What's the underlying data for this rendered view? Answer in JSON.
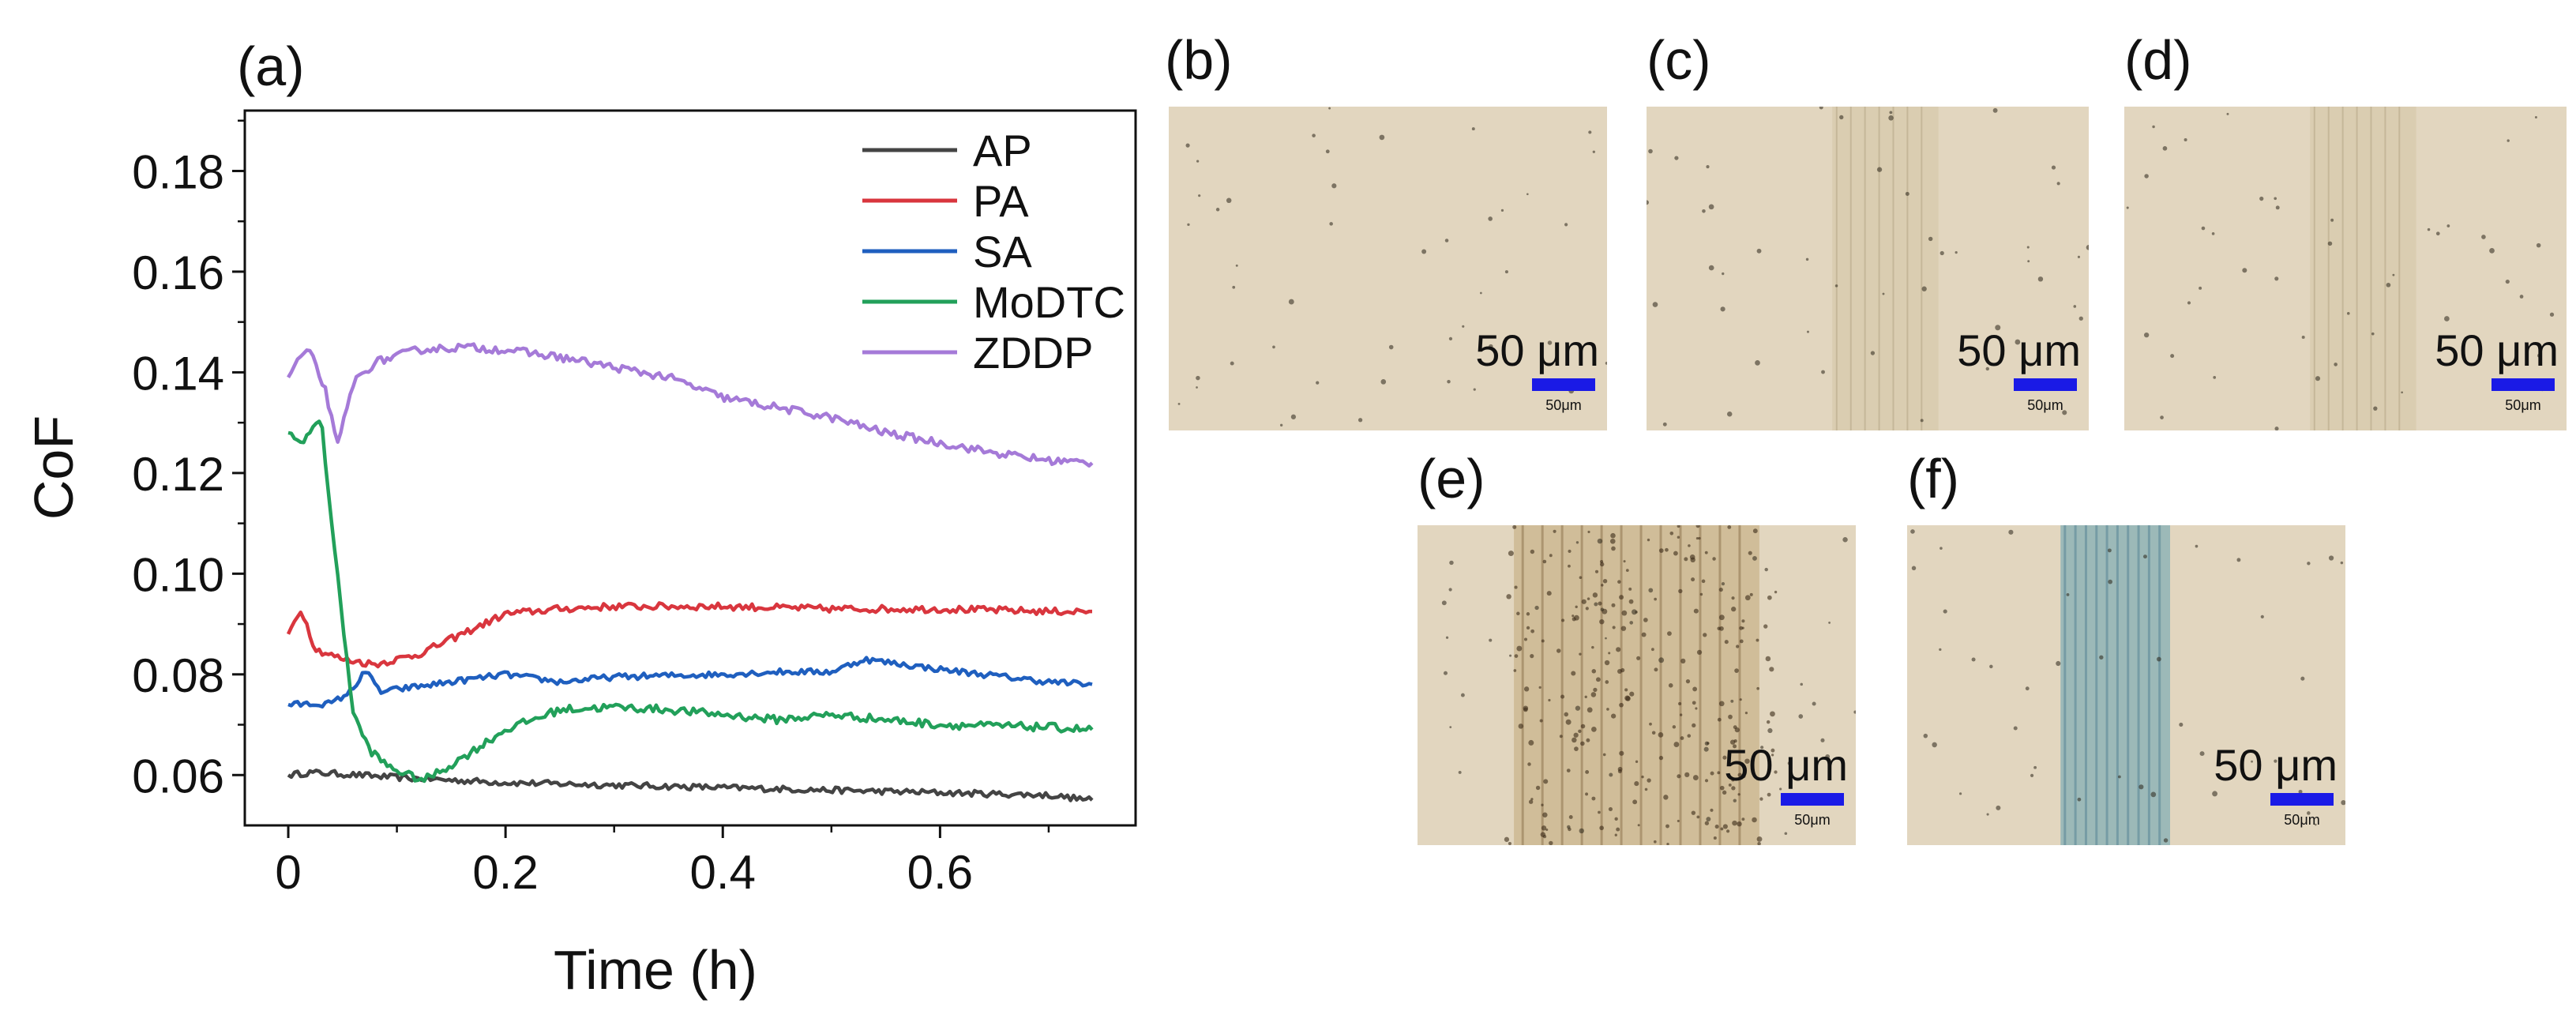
{
  "chart_data": {
    "type": "line",
    "panel_label": "(a)",
    "xlabel": "Time (h)",
    "ylabel": "CoF",
    "xlim": [
      -0.04,
      0.78
    ],
    "ylim": [
      0.05,
      0.192
    ],
    "xticks": [
      0,
      0.2,
      0.4,
      0.6
    ],
    "xtick_labels": [
      "0",
      "0.2",
      "0.4",
      "0.6"
    ],
    "yticks": [
      0.06,
      0.08,
      0.1,
      0.12,
      0.14,
      0.16,
      0.18
    ],
    "ytick_labels": [
      "0.06",
      "0.08",
      "0.10",
      "0.12",
      "0.14",
      "0.16",
      "0.18"
    ],
    "legend_position": "top-right",
    "series": [
      {
        "name": "AP",
        "color": "#444444",
        "x": [
          0,
          0.02,
          0.05,
          0.1,
          0.15,
          0.2,
          0.3,
          0.4,
          0.5,
          0.6,
          0.7,
          0.74
        ],
        "y": [
          0.06,
          0.0605,
          0.0602,
          0.0595,
          0.059,
          0.0585,
          0.058,
          0.0575,
          0.057,
          0.0565,
          0.056,
          0.055
        ],
        "noise": 0.0006
      },
      {
        "name": "PA",
        "color": "#d9363e",
        "x": [
          0,
          0.012,
          0.025,
          0.05,
          0.08,
          0.12,
          0.16,
          0.2,
          0.25,
          0.3,
          0.4,
          0.5,
          0.6,
          0.7,
          0.74
        ],
        "y": [
          0.088,
          0.093,
          0.085,
          0.083,
          0.082,
          0.084,
          0.088,
          0.092,
          0.093,
          0.0935,
          0.0935,
          0.093,
          0.093,
          0.0925,
          0.0925
        ],
        "noise": 0.0007
      },
      {
        "name": "SA",
        "color": "#1f5fbf",
        "x": [
          0,
          0.04,
          0.06,
          0.07,
          0.085,
          0.1,
          0.15,
          0.2,
          0.25,
          0.3,
          0.4,
          0.45,
          0.5,
          0.53,
          0.6,
          0.7,
          0.74
        ],
        "y": [
          0.074,
          0.0742,
          0.077,
          0.081,
          0.0765,
          0.077,
          0.0785,
          0.08,
          0.0785,
          0.0795,
          0.08,
          0.0805,
          0.0805,
          0.083,
          0.081,
          0.0785,
          0.078
        ],
        "noise": 0.0006
      },
      {
        "name": "MoDTC",
        "color": "#22a05a",
        "x": [
          0,
          0.01,
          0.02,
          0.03,
          0.045,
          0.06,
          0.075,
          0.09,
          0.11,
          0.125,
          0.15,
          0.2,
          0.25,
          0.3,
          0.35,
          0.4,
          0.45,
          0.5,
          0.6,
          0.7,
          0.74
        ],
        "y": [
          0.128,
          0.126,
          0.128,
          0.131,
          0.1,
          0.072,
          0.065,
          0.062,
          0.06,
          0.059,
          0.062,
          0.069,
          0.073,
          0.0735,
          0.073,
          0.072,
          0.071,
          0.072,
          0.07,
          0.0695,
          0.069
        ],
        "noise": 0.0008
      },
      {
        "name": "ZDDP",
        "color": "#a57ad8",
        "x": [
          0,
          0.01,
          0.02,
          0.035,
          0.045,
          0.06,
          0.08,
          0.12,
          0.16,
          0.2,
          0.25,
          0.3,
          0.35,
          0.4,
          0.45,
          0.5,
          0.55,
          0.6,
          0.65,
          0.7,
          0.74
        ],
        "y": [
          0.139,
          0.143,
          0.144,
          0.136,
          0.125,
          0.138,
          0.142,
          0.1445,
          0.145,
          0.1445,
          0.143,
          0.141,
          0.139,
          0.135,
          0.133,
          0.131,
          0.128,
          0.126,
          0.124,
          0.1225,
          0.122
        ],
        "noise": 0.0008
      }
    ]
  },
  "micrographs": [
    {
      "label": "(b)",
      "scale_text": "50 μm",
      "bar_text": "50μm",
      "wear": "none"
    },
    {
      "label": "(c)",
      "scale_text": "50 μm",
      "bar_text": "50μm",
      "wear": "light"
    },
    {
      "label": "(d)",
      "scale_text": "50 μm",
      "bar_text": "50μm",
      "wear": "light"
    },
    {
      "label": "(e)",
      "scale_text": "50 μm",
      "bar_text": "50μm",
      "wear": "heavy"
    },
    {
      "label": "(f)",
      "scale_text": "50 μm",
      "bar_text": "50μm",
      "wear": "film"
    }
  ],
  "colors": {
    "micrograph_bg": "#e2d6bf",
    "scale_bar": "#1a1ae6",
    "axis": "#111111"
  }
}
